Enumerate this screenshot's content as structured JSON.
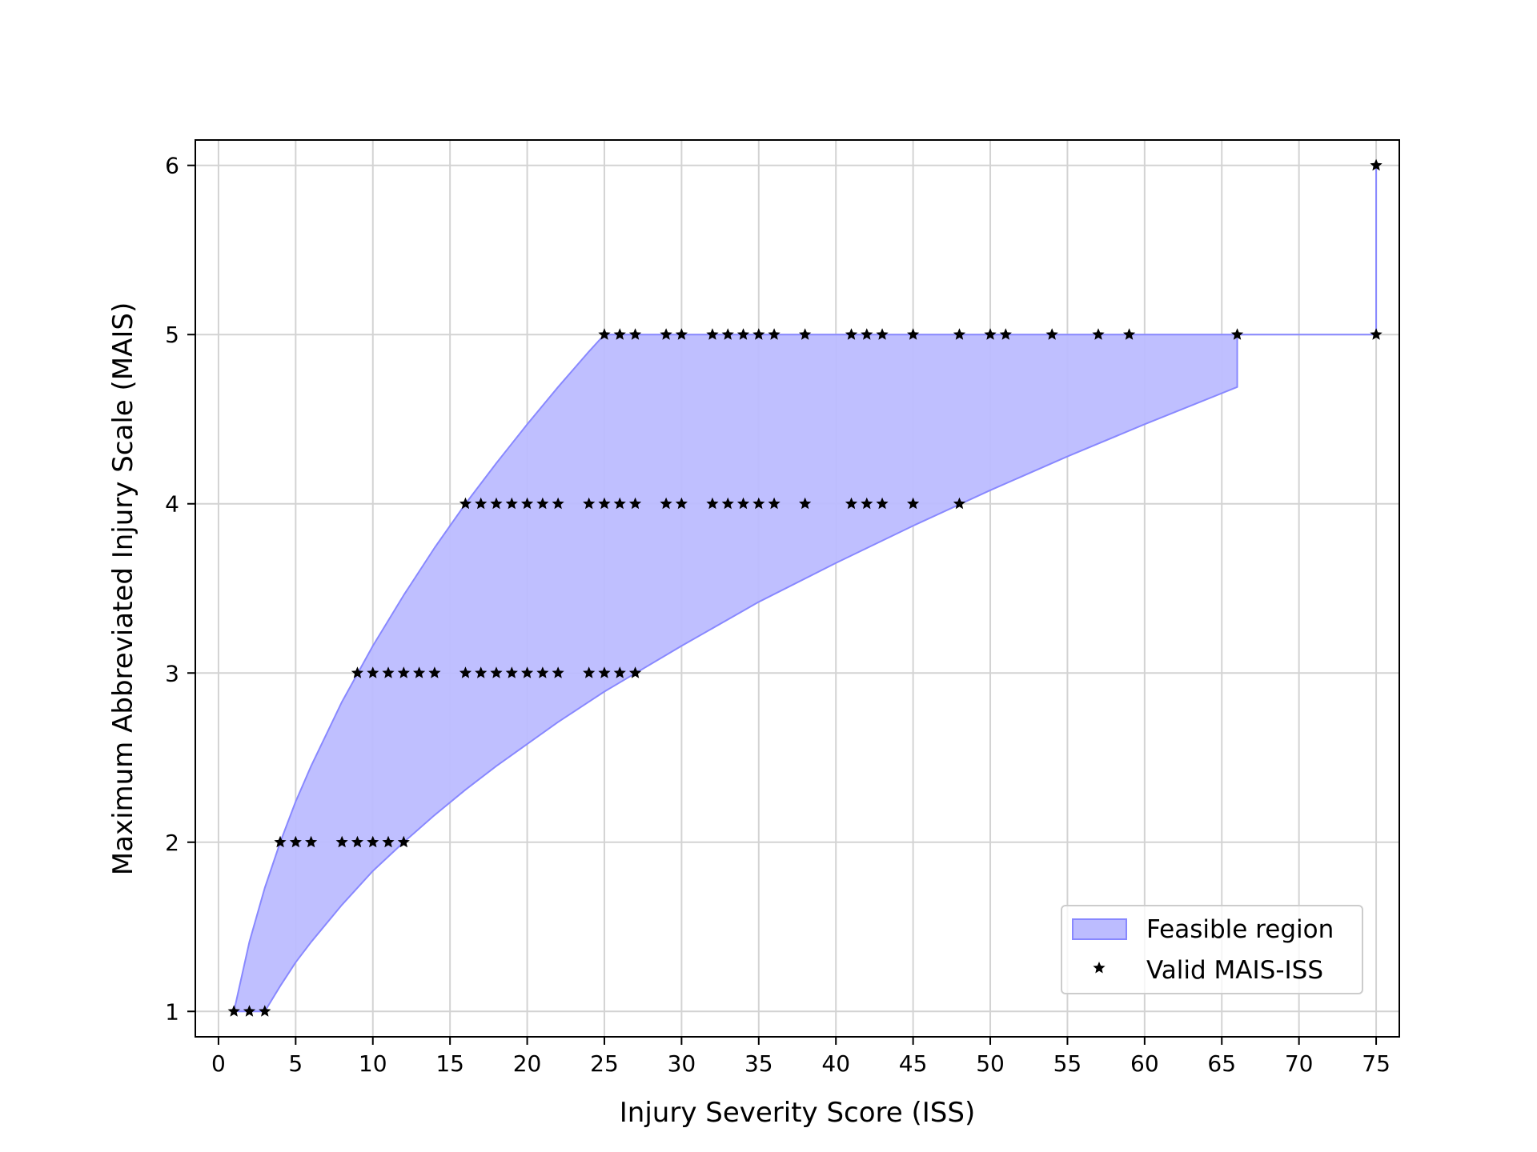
{
  "chart_data": {
    "type": "scatter",
    "xlabel": "Injury Severity Score (ISS)",
    "ylabel": "Maximum Abbreviated Injury Scale (MAIS)",
    "xlim": [
      -1.5,
      76.5
    ],
    "ylim": [
      0.85,
      6.15
    ],
    "xticks": [
      0,
      5,
      10,
      15,
      20,
      25,
      30,
      35,
      40,
      45,
      50,
      55,
      60,
      65,
      70,
      75
    ],
    "yticks": [
      1,
      2,
      3,
      4,
      5,
      6
    ],
    "grid": true,
    "legend_position": "lower-right",
    "colors": {
      "region_fill": "#bcbcff",
      "region_edge": "#8888ff",
      "marker": "#000000",
      "grid": "#d3d3d3"
    },
    "series": [
      {
        "name": "Feasible region",
        "kind": "fill_between",
        "x": [
          1,
          2,
          3,
          4,
          5,
          6,
          8,
          10,
          12,
          14,
          16,
          18,
          20,
          22,
          24,
          25,
          30,
          35,
          40,
          45,
          50,
          55,
          60,
          66,
          66,
          75,
          75
        ],
        "y_upper": [
          1,
          1.41,
          1.73,
          2,
          2.24,
          2.45,
          2.83,
          3.16,
          3.46,
          3.74,
          4,
          4.24,
          4.47,
          4.69,
          4.9,
          5,
          5,
          5,
          5,
          5,
          5,
          5,
          5,
          5,
          5,
          5,
          6
        ],
        "y_lower": [
          1,
          1,
          1,
          1.15,
          1.29,
          1.41,
          1.63,
          1.83,
          2,
          2.16,
          2.31,
          2.45,
          2.58,
          2.71,
          2.83,
          2.89,
          3.16,
          3.42,
          3.65,
          3.87,
          4.08,
          4.28,
          4.47,
          4.69,
          5,
          5,
          5
        ]
      },
      {
        "name": "Valid MAIS-ISS",
        "kind": "scatter",
        "marker": "star",
        "points": [
          [
            1,
            1
          ],
          [
            2,
            1
          ],
          [
            3,
            1
          ],
          [
            4,
            2
          ],
          [
            5,
            2
          ],
          [
            6,
            2
          ],
          [
            8,
            2
          ],
          [
            9,
            2
          ],
          [
            10,
            2
          ],
          [
            11,
            2
          ],
          [
            12,
            2
          ],
          [
            9,
            3
          ],
          [
            10,
            3
          ],
          [
            11,
            3
          ],
          [
            12,
            3
          ],
          [
            13,
            3
          ],
          [
            14,
            3
          ],
          [
            16,
            3
          ],
          [
            17,
            3
          ],
          [
            18,
            3
          ],
          [
            19,
            3
          ],
          [
            20,
            3
          ],
          [
            21,
            3
          ],
          [
            22,
            3
          ],
          [
            24,
            3
          ],
          [
            25,
            3
          ],
          [
            26,
            3
          ],
          [
            27,
            3
          ],
          [
            16,
            4
          ],
          [
            17,
            4
          ],
          [
            18,
            4
          ],
          [
            19,
            4
          ],
          [
            20,
            4
          ],
          [
            21,
            4
          ],
          [
            22,
            4
          ],
          [
            24,
            4
          ],
          [
            25,
            4
          ],
          [
            26,
            4
          ],
          [
            27,
            4
          ],
          [
            29,
            4
          ],
          [
            30,
            4
          ],
          [
            32,
            4
          ],
          [
            33,
            4
          ],
          [
            34,
            4
          ],
          [
            35,
            4
          ],
          [
            36,
            4
          ],
          [
            38,
            4
          ],
          [
            41,
            4
          ],
          [
            42,
            4
          ],
          [
            43,
            4
          ],
          [
            45,
            4
          ],
          [
            48,
            4
          ],
          [
            25,
            5
          ],
          [
            26,
            5
          ],
          [
            27,
            5
          ],
          [
            29,
            5
          ],
          [
            30,
            5
          ],
          [
            32,
            5
          ],
          [
            33,
            5
          ],
          [
            34,
            5
          ],
          [
            35,
            5
          ],
          [
            36,
            5
          ],
          [
            38,
            5
          ],
          [
            41,
            5
          ],
          [
            42,
            5
          ],
          [
            43,
            5
          ],
          [
            45,
            5
          ],
          [
            48,
            5
          ],
          [
            50,
            5
          ],
          [
            51,
            5
          ],
          [
            54,
            5
          ],
          [
            57,
            5
          ],
          [
            59,
            5
          ],
          [
            66,
            5
          ],
          [
            75,
            5
          ],
          [
            75,
            6
          ]
        ]
      }
    ]
  }
}
